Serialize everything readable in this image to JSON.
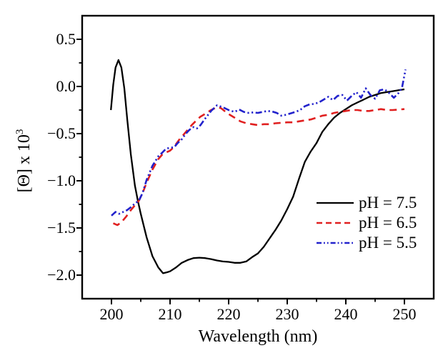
{
  "figure": {
    "y_axis_label_base": "[Θ] x 10",
    "y_axis_label_exponent": "3",
    "x_axis_label": "Wavelength (nm)"
  },
  "chart_data": {
    "type": "line",
    "title": "",
    "xlabel": "Wavelength (nm)",
    "ylabel": "[Θ] x 10^3",
    "xlim": [
      195,
      255
    ],
    "ylim": [
      -2.25,
      0.75
    ],
    "grid": false,
    "legend_position": "lower right",
    "x_major_ticks": [
      200,
      210,
      220,
      230,
      240,
      250
    ],
    "x_tick_labels": [
      "200",
      "210",
      "220",
      "230",
      "240",
      "250"
    ],
    "x_minor_ticks": [
      205,
      215,
      225,
      235,
      245
    ],
    "y_major_ticks": [
      0.5,
      0.0,
      -0.5,
      -1.0,
      -1.5,
      -2.0
    ],
    "y_tick_labels": [
      "0.5",
      "0.0",
      "−0.5",
      "−1.0",
      "−1.5",
      "−2.0"
    ],
    "y_minor_ticks": [
      0.25,
      -0.25,
      -0.75,
      -1.25,
      -1.75
    ],
    "axis_color": "#000000",
    "series": [
      {
        "name": "pH = 7.5",
        "color": "#000000",
        "style": "solid",
        "points": [
          [
            199.9,
            -0.25
          ],
          [
            200.3,
            0.02
          ],
          [
            200.7,
            0.2
          ],
          [
            201.2,
            0.28
          ],
          [
            201.7,
            0.2
          ],
          [
            202.2,
            -0.02
          ],
          [
            202.7,
            -0.35
          ],
          [
            203.3,
            -0.72
          ],
          [
            204,
            -1.05
          ],
          [
            204.5,
            -1.21
          ],
          [
            205,
            -1.35
          ],
          [
            206,
            -1.6
          ],
          [
            207,
            -1.8
          ],
          [
            208,
            -1.92
          ],
          [
            208.8,
            -1.98
          ],
          [
            209.5,
            -1.97
          ],
          [
            210,
            -1.96
          ],
          [
            211,
            -1.92
          ],
          [
            212,
            -1.87
          ],
          [
            213,
            -1.84
          ],
          [
            214,
            -1.82
          ],
          [
            215,
            -1.815
          ],
          [
            216,
            -1.82
          ],
          [
            217,
            -1.83
          ],
          [
            218,
            -1.845
          ],
          [
            219,
            -1.855
          ],
          [
            220,
            -1.86
          ],
          [
            221,
            -1.87
          ],
          [
            222,
            -1.87
          ],
          [
            223,
            -1.855
          ],
          [
            224,
            -1.81
          ],
          [
            225,
            -1.77
          ],
          [
            226,
            -1.7
          ],
          [
            227,
            -1.61
          ],
          [
            228,
            -1.52
          ],
          [
            229,
            -1.42
          ],
          [
            230,
            -1.3
          ],
          [
            231,
            -1.17
          ],
          [
            232,
            -0.98
          ],
          [
            233,
            -0.8
          ],
          [
            234,
            -0.69
          ],
          [
            235,
            -0.6
          ],
          [
            236,
            -0.48
          ],
          [
            237,
            -0.4
          ],
          [
            238,
            -0.33
          ],
          [
            239,
            -0.28
          ],
          [
            240,
            -0.24
          ],
          [
            241,
            -0.2
          ],
          [
            242,
            -0.17
          ],
          [
            243,
            -0.14
          ],
          [
            244,
            -0.11
          ],
          [
            245,
            -0.09
          ],
          [
            246,
            -0.07
          ],
          [
            247,
            -0.06
          ],
          [
            248,
            -0.05
          ],
          [
            249,
            -0.04
          ],
          [
            250,
            -0.03
          ]
        ]
      },
      {
        "name": "pH = 6.5",
        "color": "#e02020",
        "style": "dashed",
        "points": [
          [
            200.3,
            -1.45
          ],
          [
            201,
            -1.47
          ],
          [
            201.7,
            -1.44
          ],
          [
            202.5,
            -1.38
          ],
          [
            203.2,
            -1.32
          ],
          [
            204,
            -1.26
          ],
          [
            204.7,
            -1.21
          ],
          [
            205.5,
            -1.1
          ],
          [
            206,
            -1.02
          ],
          [
            207,
            -0.88
          ],
          [
            208,
            -0.77
          ],
          [
            208.7,
            -0.72
          ],
          [
            209.3,
            -0.7
          ],
          [
            210,
            -0.68
          ],
          [
            210.7,
            -0.64
          ],
          [
            211.5,
            -0.57
          ],
          [
            212.2,
            -0.52
          ],
          [
            213,
            -0.46
          ],
          [
            213.7,
            -0.41
          ],
          [
            214.5,
            -0.36
          ],
          [
            215.2,
            -0.32
          ],
          [
            216,
            -0.29
          ],
          [
            217,
            -0.25
          ],
          [
            218,
            -0.22
          ],
          [
            218.7,
            -0.23
          ],
          [
            219.5,
            -0.27
          ],
          [
            220.2,
            -0.3
          ],
          [
            221,
            -0.33
          ],
          [
            222,
            -0.37
          ],
          [
            223,
            -0.39
          ],
          [
            224,
            -0.4
          ],
          [
            225,
            -0.41
          ],
          [
            226,
            -0.4
          ],
          [
            227,
            -0.4
          ],
          [
            228,
            -0.39
          ],
          [
            229,
            -0.385
          ],
          [
            230,
            -0.38
          ],
          [
            231,
            -0.38
          ],
          [
            232,
            -0.37
          ],
          [
            233,
            -0.36
          ],
          [
            234,
            -0.35
          ],
          [
            235,
            -0.33
          ],
          [
            236,
            -0.31
          ],
          [
            237,
            -0.3
          ],
          [
            238,
            -0.28
          ],
          [
            239,
            -0.27
          ],
          [
            240,
            -0.26
          ],
          [
            241,
            -0.25
          ],
          [
            242,
            -0.25
          ],
          [
            243,
            -0.26
          ],
          [
            244,
            -0.26
          ],
          [
            245,
            -0.25
          ],
          [
            246,
            -0.24
          ],
          [
            247,
            -0.25
          ],
          [
            248,
            -0.25
          ],
          [
            249,
            -0.245
          ],
          [
            250,
            -0.24
          ]
        ]
      },
      {
        "name": "pH = 5.5",
        "color": "#2222cc",
        "style": "dash-dot-dot",
        "points": [
          [
            200,
            -1.37
          ],
          [
            200.7,
            -1.33
          ],
          [
            201.3,
            -1.35
          ],
          [
            202,
            -1.33
          ],
          [
            202.7,
            -1.31
          ],
          [
            203.3,
            -1.28
          ],
          [
            204,
            -1.24
          ],
          [
            204.7,
            -1.21
          ],
          [
            205.3,
            -1.13
          ],
          [
            206,
            -0.99
          ],
          [
            207,
            -0.84
          ],
          [
            208,
            -0.74
          ],
          [
            208.7,
            -0.7
          ],
          [
            209.3,
            -0.66
          ],
          [
            210,
            -0.65
          ],
          [
            210.7,
            -0.645
          ],
          [
            211.3,
            -0.6
          ],
          [
            212,
            -0.56
          ],
          [
            212.7,
            -0.5
          ],
          [
            213.3,
            -0.46
          ],
          [
            214,
            -0.43
          ],
          [
            214.6,
            -0.445
          ],
          [
            215.2,
            -0.41
          ],
          [
            216,
            -0.34
          ],
          [
            217,
            -0.26
          ],
          [
            218,
            -0.2
          ],
          [
            219,
            -0.22
          ],
          [
            220,
            -0.25
          ],
          [
            221,
            -0.27
          ],
          [
            221.8,
            -0.245
          ],
          [
            222.6,
            -0.27
          ],
          [
            223.4,
            -0.28
          ],
          [
            224.2,
            -0.275
          ],
          [
            225,
            -0.28
          ],
          [
            225.8,
            -0.27
          ],
          [
            226.6,
            -0.26
          ],
          [
            227.4,
            -0.265
          ],
          [
            228.2,
            -0.28
          ],
          [
            229,
            -0.31
          ],
          [
            229.8,
            -0.3
          ],
          [
            230.6,
            -0.285
          ],
          [
            231.4,
            -0.27
          ],
          [
            232.2,
            -0.25
          ],
          [
            233,
            -0.21
          ],
          [
            233.8,
            -0.19
          ],
          [
            234.6,
            -0.185
          ],
          [
            235.4,
            -0.17
          ],
          [
            236.2,
            -0.14
          ],
          [
            237,
            -0.11
          ],
          [
            237.8,
            -0.145
          ],
          [
            238.6,
            -0.1
          ],
          [
            239.4,
            -0.09
          ],
          [
            240.2,
            -0.15
          ],
          [
            241,
            -0.1
          ],
          [
            241.8,
            -0.06
          ],
          [
            242.6,
            -0.12
          ],
          [
            243.4,
            -0.02
          ],
          [
            244.2,
            -0.09
          ],
          [
            245,
            -0.13
          ],
          [
            245.8,
            -0.04
          ],
          [
            246.6,
            -0.03
          ],
          [
            247.4,
            -0.07
          ],
          [
            248.2,
            -0.12
          ],
          [
            249,
            -0.07
          ],
          [
            249.6,
            -0.01
          ],
          [
            250.2,
            0.18
          ]
        ]
      }
    ]
  }
}
